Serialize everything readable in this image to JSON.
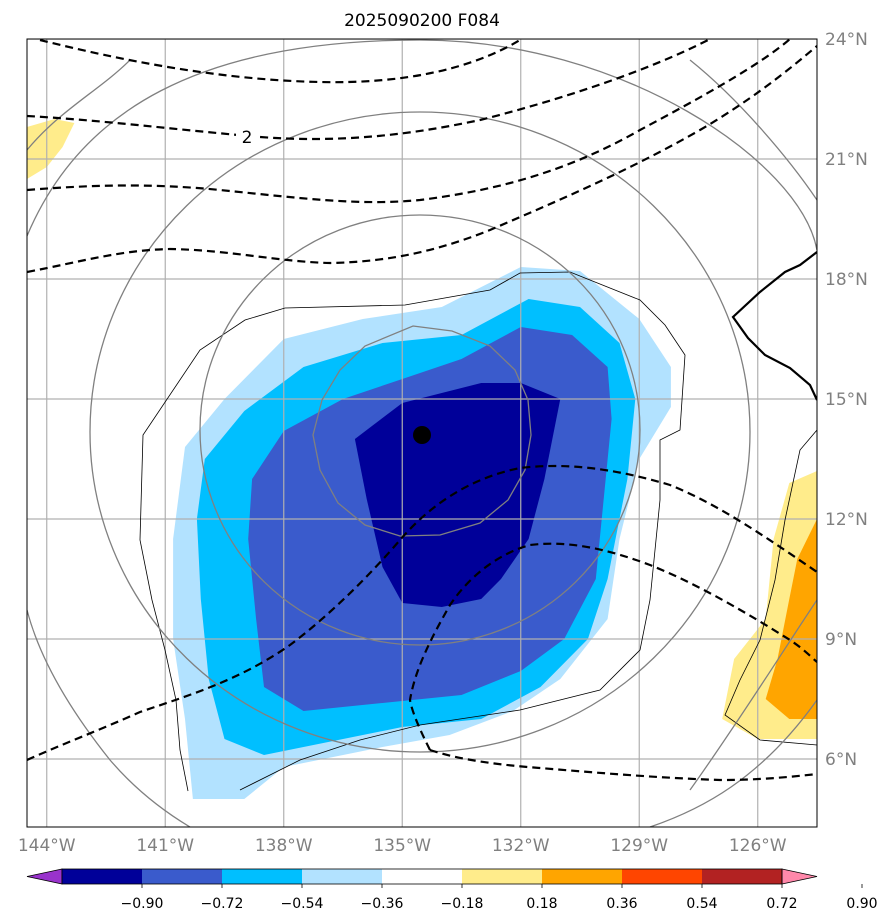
{
  "title": "2025090200 F084",
  "map": {
    "lon_ticks": [
      {
        "value": -144,
        "label": "144°W"
      },
      {
        "value": -141,
        "label": "141°W"
      },
      {
        "value": -138,
        "label": "138°W"
      },
      {
        "value": -135,
        "label": "135°W"
      },
      {
        "value": -132,
        "label": "132°W"
      },
      {
        "value": -129,
        "label": "129°W"
      },
      {
        "value": -126,
        "label": "126°W"
      }
    ],
    "lat_ticks": [
      {
        "value": 24,
        "label": "24°N"
      },
      {
        "value": 21,
        "label": "21°N"
      },
      {
        "value": 18,
        "label": "18°N"
      },
      {
        "value": 15,
        "label": "15°N"
      },
      {
        "value": 12,
        "label": "12°N"
      },
      {
        "value": 9,
        "label": "9°N"
      },
      {
        "value": 6,
        "label": "6°N"
      }
    ],
    "extent": {
      "lon": [
        -144.5,
        -124.5
      ],
      "lat": [
        4.3,
        24.0
      ]
    },
    "grid": true,
    "center_marker": {
      "lon": -134.5,
      "lat": 14.1
    },
    "contour_label": "2"
  },
  "colorbar": {
    "colors": [
      "#9933cc",
      "#000099",
      "#3a5bcc",
      "#00bfff",
      "#b2e2ff",
      "#ffffff",
      "#ffec8b",
      "#ffa500",
      "#ff4500",
      "#b22222",
      "#ff88aa"
    ],
    "labels": [
      "−0.90",
      "−0.72",
      "−0.54",
      "−0.36",
      "−0.18",
      "0.18",
      "0.36",
      "0.54",
      "0.72",
      "0.90"
    ],
    "extend": "both"
  },
  "chart_data": {
    "type": "heatmap",
    "title": "2025090200 F084",
    "levels": [
      -0.9,
      -0.72,
      -0.54,
      -0.36,
      -0.18,
      0.18,
      0.36,
      0.54,
      0.72,
      0.9
    ],
    "field_regions": [
      {
        "level": "-0.36 to -0.18",
        "polygon_lonlat": [
          [
            -140.5,
            13.8
          ],
          [
            -139.5,
            15.0
          ],
          [
            -138,
            16.5
          ],
          [
            -136,
            17.0
          ],
          [
            -134,
            17.3
          ],
          [
            -132,
            18.3
          ],
          [
            -130.5,
            18.2
          ],
          [
            -129,
            17.0
          ],
          [
            -128.2,
            15.8
          ],
          [
            -128.2,
            14.8
          ],
          [
            -129,
            13.5
          ],
          [
            -129.5,
            11.5
          ],
          [
            -129.8,
            9.5
          ],
          [
            -131,
            8.0
          ],
          [
            -132.2,
            7.2
          ],
          [
            -133.8,
            6.6
          ],
          [
            -135.5,
            6.3
          ],
          [
            -137,
            6.0
          ],
          [
            -138,
            5.8
          ],
          [
            -139,
            5.0
          ],
          [
            -140.3,
            5.0
          ],
          [
            -140.5,
            7.0
          ],
          [
            -140.8,
            9.0
          ],
          [
            -140.8,
            11.5
          ]
        ]
      },
      {
        "level": "-0.54 to -0.36",
        "polygon_lonlat": [
          [
            -140,
            13.5
          ],
          [
            -139,
            14.7
          ],
          [
            -137.5,
            15.8
          ],
          [
            -135.5,
            16.4
          ],
          [
            -133.5,
            16.6
          ],
          [
            -131.8,
            17.5
          ],
          [
            -130.5,
            17.3
          ],
          [
            -129.5,
            16.4
          ],
          [
            -129.1,
            15.0
          ],
          [
            -129.3,
            13.0
          ],
          [
            -129.8,
            10.5
          ],
          [
            -130.3,
            9.0
          ],
          [
            -131.5,
            7.8
          ],
          [
            -133,
            7.0
          ],
          [
            -135,
            6.8
          ],
          [
            -137,
            6.4
          ],
          [
            -138.5,
            6.1
          ],
          [
            -139.5,
            6.5
          ],
          [
            -139.9,
            8.0
          ],
          [
            -140.1,
            10.0
          ],
          [
            -140.2,
            12.0
          ]
        ]
      },
      {
        "level": "-0.72 to -0.54",
        "polygon_lonlat": [
          [
            -138.8,
            13.0
          ],
          [
            -138,
            14.2
          ],
          [
            -136.5,
            15.0
          ],
          [
            -135,
            15.5
          ],
          [
            -133.5,
            16.0
          ],
          [
            -132,
            16.8
          ],
          [
            -130.7,
            16.6
          ],
          [
            -129.8,
            15.8
          ],
          [
            -129.7,
            14.5
          ],
          [
            -129.9,
            12.5
          ],
          [
            -130.1,
            10.5
          ],
          [
            -130.9,
            9.0
          ],
          [
            -132,
            8.2
          ],
          [
            -133.5,
            7.6
          ],
          [
            -135.5,
            7.4
          ],
          [
            -137.5,
            7.2
          ],
          [
            -138.5,
            7.8
          ],
          [
            -138.7,
            9.5
          ],
          [
            -138.9,
            11.5
          ]
        ]
      },
      {
        "level": "-0.90 to -0.72",
        "polygon_lonlat": [
          [
            -136.2,
            14.0
          ],
          [
            -135,
            14.9
          ],
          [
            -133,
            15.4
          ],
          [
            -132,
            15.4
          ],
          [
            -131,
            15.0
          ],
          [
            -131.4,
            13.0
          ],
          [
            -131.8,
            11.5
          ],
          [
            -132.5,
            10.5
          ],
          [
            -133,
            10.0
          ],
          [
            -134,
            9.8
          ],
          [
            -135,
            9.9
          ],
          [
            -135.5,
            10.8
          ],
          [
            -135.9,
            12.5
          ]
        ]
      },
      {
        "level": "0.18 to 0.36",
        "polygon_lonlat": [
          [
            -144.5,
            21.8
          ],
          [
            -143.8,
            22.0
          ],
          [
            -143.3,
            21.9
          ],
          [
            -143.6,
            21.3
          ],
          [
            -144.0,
            20.8
          ],
          [
            -144.5,
            20.5
          ]
        ]
      },
      {
        "level": "0.18 to 0.36",
        "polygon_lonlat": [
          [
            -124.5,
            13.2
          ],
          [
            -125.2,
            12.9
          ],
          [
            -125.6,
            11.5
          ],
          [
            -125.8,
            9.5
          ],
          [
            -126.6,
            8.5
          ],
          [
            -126.9,
            7.0
          ],
          [
            -126,
            6.5
          ],
          [
            -124.5,
            6.5
          ]
        ]
      },
      {
        "level": "0.36 to 0.54",
        "polygon_lonlat": [
          [
            -124.5,
            12.0
          ],
          [
            -125.0,
            11.0
          ],
          [
            -125.2,
            10.0
          ],
          [
            -125.5,
            8.5
          ],
          [
            -125.8,
            7.5
          ],
          [
            -125.2,
            7.0
          ],
          [
            -124.5,
            7.0
          ]
        ]
      }
    ],
    "center": {
      "lon": -134.5,
      "lat": 14.1
    }
  }
}
